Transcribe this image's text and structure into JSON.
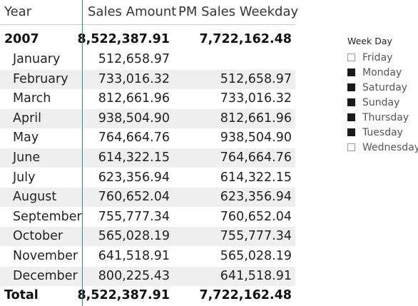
{
  "table": {
    "headers": [
      "Year",
      "Sales Amount",
      "PM Sales Weekday"
    ],
    "year_row": {
      "label": "2007",
      "sales": "8,522,387.91",
      "pm": "7,722,162.48"
    },
    "months": [
      {
        "label": "January",
        "sales": "512,658.97",
        "pm": ""
      },
      {
        "label": "February",
        "sales": "733,016.32",
        "pm": "512,658.97"
      },
      {
        "label": "March",
        "sales": "812,661.96",
        "pm": "733,016.32"
      },
      {
        "label": "April",
        "sales": "938,504.90",
        "pm": "812,661.96"
      },
      {
        "label": "May",
        "sales": "764,664.76",
        "pm": "938,504.90"
      },
      {
        "label": "June",
        "sales": "614,322.15",
        "pm": "764,664.76"
      },
      {
        "label": "July",
        "sales": "623,356.94",
        "pm": "614,322.15"
      },
      {
        "label": "August",
        "sales": "760,652.04",
        "pm": "623,356.94"
      },
      {
        "label": "September",
        "sales": "755,777.34",
        "pm": "760,652.04"
      },
      {
        "label": "October",
        "sales": "565,028.19",
        "pm": "755,777.34"
      },
      {
        "label": "November",
        "sales": "641,518.91",
        "pm": "565,028.19"
      },
      {
        "label": "December",
        "sales": "800,225.43",
        "pm": "641,518.91"
      }
    ],
    "total_row": {
      "label": "Total",
      "sales": "8,522,387.91",
      "pm": "7,722,162.48"
    }
  },
  "slicer": {
    "title": "Week Day",
    "items": [
      {
        "label": "Friday",
        "checked": false
      },
      {
        "label": "Monday",
        "checked": true
      },
      {
        "label": "Saturday",
        "checked": true
      },
      {
        "label": "Sunday",
        "checked": true
      },
      {
        "label": "Thursday",
        "checked": true
      },
      {
        "label": "Tuesday",
        "checked": true
      },
      {
        "label": "Wednesday",
        "checked": false
      }
    ]
  }
}
